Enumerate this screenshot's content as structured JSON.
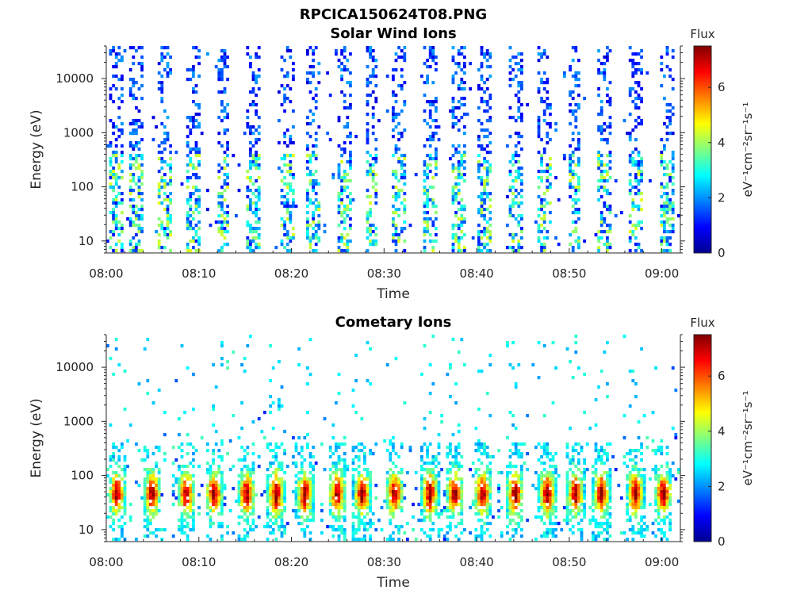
{
  "figure_title": "RPCICA150624T08.PNG",
  "colormap": [
    "#00008f",
    "#0000ff",
    "#0080ff",
    "#00ffff",
    "#80ff80",
    "#ffff00",
    "#ff8000",
    "#ff0000",
    "#800000"
  ],
  "chart_data": [
    {
      "type": "heatmap",
      "title": "Solar Wind Ions",
      "xlabel": "Time",
      "ylabel": "Energy (eV)",
      "x_ticks": [
        "08:00",
        "08:10",
        "08:20",
        "08:30",
        "08:40",
        "08:50",
        "09:00"
      ],
      "x_range_minutes": [
        0,
        62
      ],
      "y_scale": "log",
      "y_ticks": [
        "10",
        "100",
        "1000",
        "10000"
      ],
      "y_range": [
        6,
        40000
      ],
      "colorbar": {
        "title": "Flux",
        "label": "eV⁻¹cm⁻²sr⁻¹s⁻¹",
        "range": [
          0,
          7.5
        ],
        "ticks": [
          "0",
          "2",
          "4",
          "6"
        ]
      },
      "burst_centers_min": [
        1,
        3.2,
        6.2,
        9.2,
        12.5,
        15.8,
        19.3,
        22.2,
        25.5,
        28.5,
        31.5,
        34.8,
        37.9,
        40.8,
        44.2,
        47.3,
        50.4,
        53.7,
        57.0,
        60.3
      ],
      "description_intensity": "low to moderate flux, broad energy spread 10 eV to 20 keV"
    },
    {
      "type": "heatmap",
      "title": "Cometary Ions",
      "xlabel": "Time",
      "ylabel": "Energy (eV)",
      "x_ticks": [
        "08:00",
        "08:10",
        "08:20",
        "08:30",
        "08:40",
        "08:50",
        "09:00"
      ],
      "x_range_minutes": [
        0,
        62
      ],
      "y_scale": "log",
      "y_ticks": [
        "10",
        "100",
        "1000",
        "10000"
      ],
      "y_range": [
        6,
        40000
      ],
      "colorbar": {
        "title": "Flux",
        "label": "eV⁻¹cm⁻²sr⁻¹s⁻¹",
        "range": [
          0,
          7.5
        ],
        "ticks": [
          "0",
          "2",
          "4",
          "6"
        ]
      },
      "burst_centers_min": [
        1,
        4.8,
        8.5,
        11.5,
        15.0,
        18.2,
        21.3,
        24.8,
        27.5,
        31.0,
        34.8,
        37.5,
        40.5,
        44.0,
        47.5,
        50.5,
        53.3,
        57.0,
        60.0
      ],
      "description_intensity": "high flux concentrated at 10-300 eV"
    }
  ]
}
